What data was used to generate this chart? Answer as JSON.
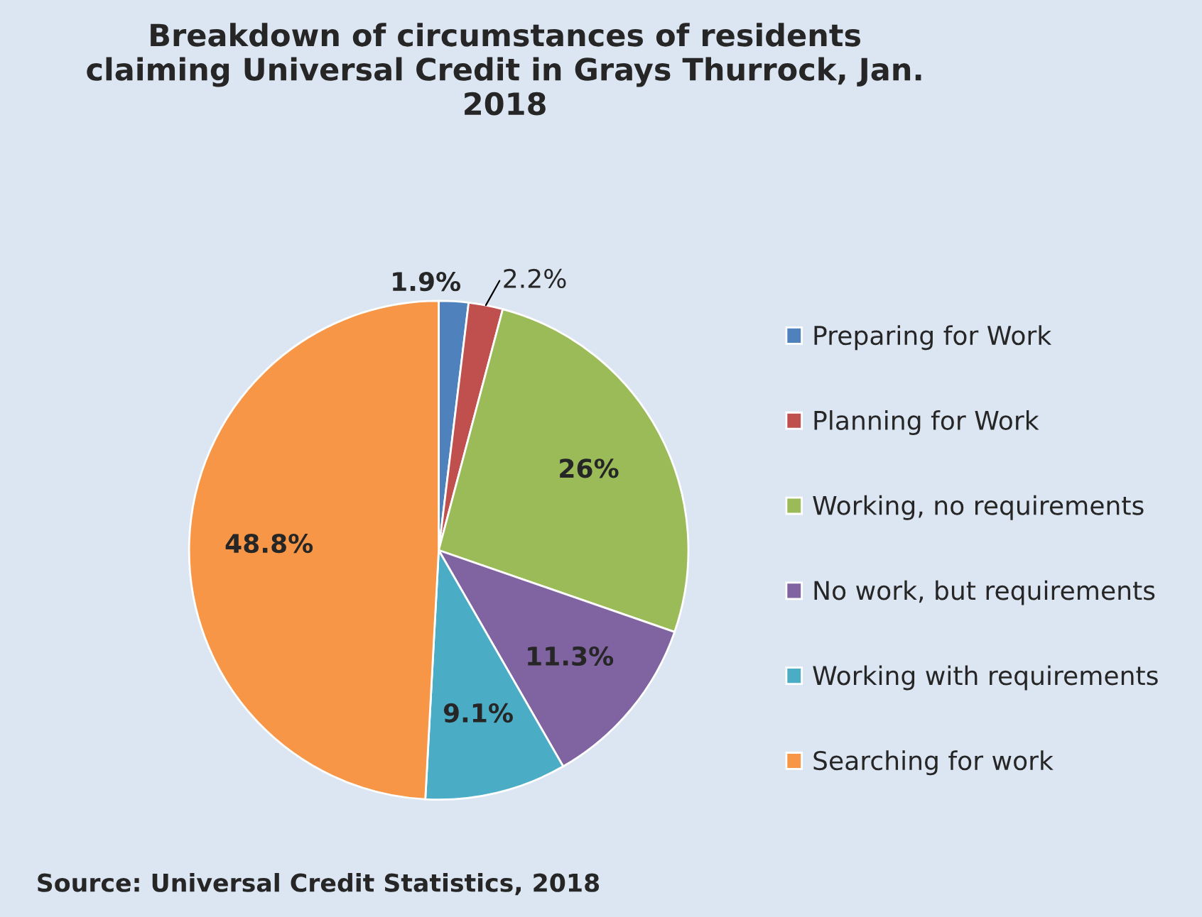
{
  "chart_data": {
    "type": "pie",
    "title": "Breakdown of circumstances of residents\nclaiming Universal Credit in Grays Thurrock, Jan.\n2018",
    "categories": [
      "Preparing for Work",
      "Planning for Work",
      "Working, no requirements",
      "No work, but requirements",
      "Working with requirements",
      "Searching for work"
    ],
    "values": [
      1.9,
      2.2,
      26,
      11.3,
      9.1,
      48.8
    ],
    "colors": [
      "#4f81bd",
      "#c0504d",
      "#9bbb59",
      "#8064a2",
      "#4bacc6",
      "#f79646"
    ],
    "value_labels": [
      "1.9%",
      "2.2%",
      "26%",
      "11.3%",
      "9.1%",
      "48.8%"
    ],
    "legend": "right",
    "annotations": [
      "Source: Universal Credit Statistics, 2018"
    ]
  }
}
